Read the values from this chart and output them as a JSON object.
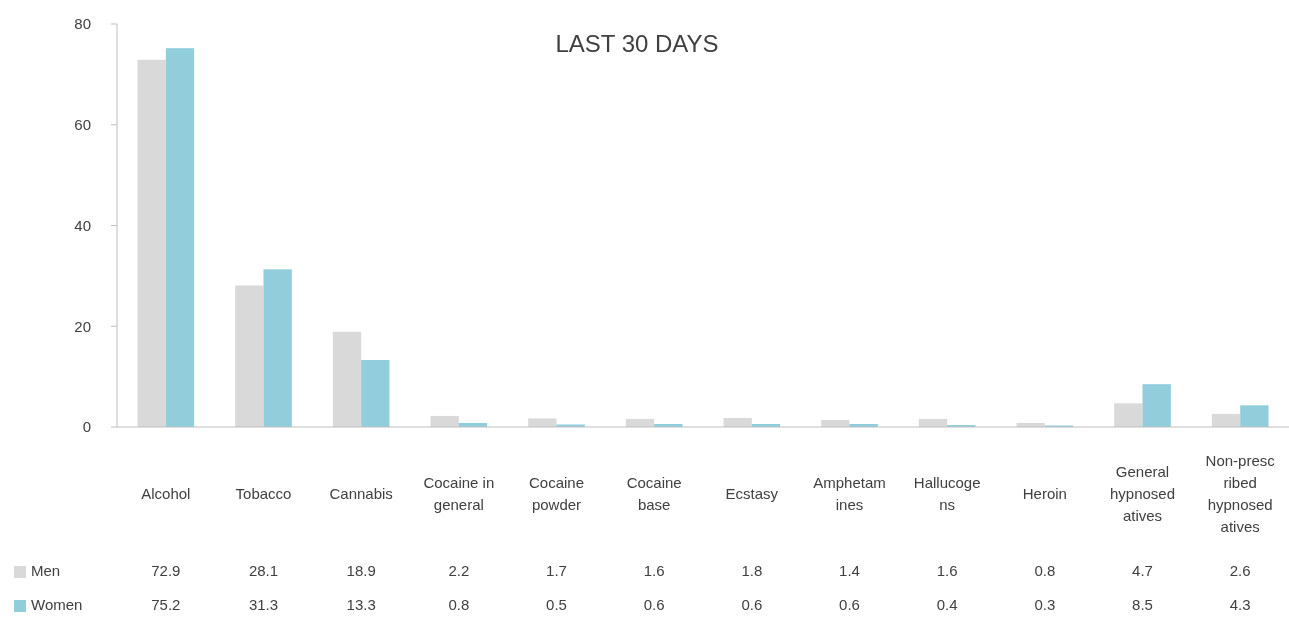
{
  "chart_data": {
    "type": "bar",
    "title": "LAST 30 DAYS",
    "categories": [
      "Alcohol",
      "Tobacco",
      "Cannabis",
      "Cocaine in general",
      "Cocaine powder",
      "Cocaine base",
      "Ecstasy",
      "Amphetamines",
      "Hallucogens",
      "Heroin",
      "General hypnosedatives",
      "Non-prescribed hypnosedatives"
    ],
    "series": [
      {
        "name": "Men",
        "color": "#d9d9d9",
        "values": [
          72.9,
          28.1,
          18.9,
          2.2,
          1.7,
          1.6,
          1.8,
          1.4,
          1.6,
          0.8,
          4.7,
          2.6
        ]
      },
      {
        "name": "Women",
        "color": "#92cddc",
        "values": [
          75.2,
          31.3,
          13.3,
          0.8,
          0.5,
          0.6,
          0.6,
          0.6,
          0.4,
          0.3,
          8.5,
          4.3
        ]
      }
    ],
    "ylim": [
      0,
      80
    ],
    "yticks": [
      0,
      20,
      40,
      60,
      80
    ],
    "data_labels": true,
    "legend": "bottom"
  }
}
